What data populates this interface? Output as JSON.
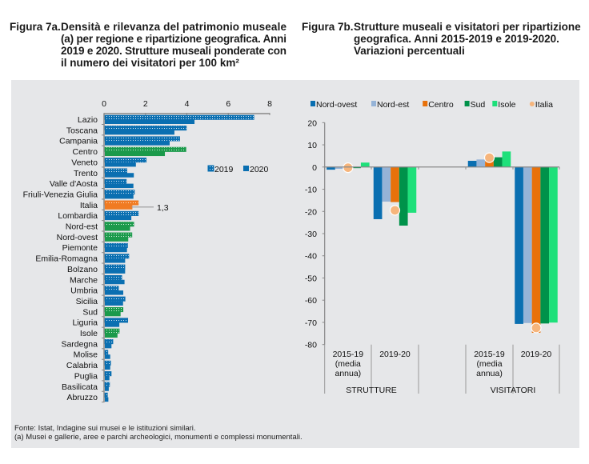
{
  "titles": {
    "fig7a_label": "Figura 7a.",
    "fig7a_lines": [
      "Densità e rilevanza del patrimonio museale",
      "(a) per regione e ripartizione geografica. Anni",
      "2019 e 2020. Strutture museali ponderate con",
      "il numero dei visitatori per 100 km²"
    ],
    "fig7b_label": "Figura 7b.",
    "fig7b_lines": [
      "Strutture museali e visitatori per ripartizione",
      "geografica. Anni 2015-2019 e 2019-2020.",
      "Variazioni percentuali"
    ]
  },
  "notes": [
    "Fonte: Istat, Indagine sui musei e le istituzioni similari.",
    "(a) Musei e gallerie, aree e parchi archeologici, monumenti e complessi monumentali."
  ],
  "colors": {
    "panel": "#e6e7e9",
    "region": "#0a6fb1",
    "ripartizione": "#1b9a4b",
    "italia": "#f07b22"
  },
  "chart_data": [
    {
      "type": "bar",
      "orientation": "horizontal",
      "categories": [
        "Lazio",
        "Toscana",
        "Campania",
        "Centro",
        "Veneto",
        "Trento",
        "Valle d'Aosta",
        "Friuli-Venezia Giulia",
        "Italia",
        "Lombardia",
        "Nord-est",
        "Nord-ovest",
        "Piemonte",
        "Emilia-Romagna",
        "Bolzano",
        "Marche",
        "Umbria",
        "Sicilia",
        "Sud",
        "Liguria",
        "Isole",
        "Sardegna",
        "Molise",
        "Calabria",
        "Puglia",
        "Basilicata",
        "Abruzzo"
      ],
      "category_kind": [
        "region",
        "region",
        "region",
        "ripartizione",
        "region",
        "region",
        "region",
        "region",
        "italia",
        "region",
        "ripartizione",
        "ripartizione",
        "region",
        "region",
        "region",
        "region",
        "region",
        "region",
        "ripartizione",
        "region",
        "ripartizione",
        "region",
        "region",
        "region",
        "region",
        "region",
        "region"
      ],
      "series": [
        {
          "name": "2019",
          "style": "hatched",
          "values": [
            7.2,
            3.94,
            3.62,
            3.92,
            2.0,
            1.07,
            1.04,
            1.43,
            1.62,
            1.62,
            1.4,
            1.31,
            1.1,
            1.16,
            0.97,
            0.82,
            0.66,
            0.98,
            0.88,
            1.11,
            0.7,
            0.39,
            0.15,
            0.28,
            0.31,
            0.23,
            0.13
          ]
        },
        {
          "name": "2020",
          "style": "solid",
          "values": [
            4.33,
            3.36,
            3.13,
            2.9,
            1.5,
            1.4,
            1.38,
            1.38,
            1.33,
            1.28,
            1.22,
            1.13,
            1.07,
            0.98,
            0.98,
            0.95,
            0.89,
            0.88,
            0.76,
            0.7,
            0.61,
            0.32,
            0.26,
            0.26,
            0.22,
            0.19,
            0.17
          ]
        }
      ],
      "xlim": [
        0,
        8
      ],
      "xticks": [
        "0",
        "2",
        "4",
        "6",
        "8"
      ],
      "annotation": "1,3",
      "legend_placement": "right",
      "grid": false
    },
    {
      "type": "bar",
      "groups": [
        {
          "label_lines": [
            "2015-19",
            "(media",
            "annua)"
          ],
          "parent": "STRUTTURE"
        },
        {
          "label_lines": [
            "2019-20"
          ],
          "parent": "STRUTTURE"
        },
        {
          "label_lines": [
            "2015-19",
            "(media",
            "annua)"
          ],
          "parent": "VISITATORI"
        },
        {
          "label_lines": [
            "2019-20"
          ],
          "parent": "VISITATORI"
        }
      ],
      "parents": [
        "STRUTTURE",
        "VISITATORI"
      ],
      "series": [
        {
          "name": "Nord-ovest",
          "color": "#0a6fb1",
          "values": [
            -1.2,
            -23.5,
            2.8,
            -70.7
          ]
        },
        {
          "name": "Nord-est",
          "color": "#95b3d7",
          "values": [
            -0.8,
            -15.6,
            3.4,
            -70.3
          ]
        },
        {
          "name": "Centro",
          "color": "#e8710a",
          "values": [
            -0.5,
            -15.8,
            3.0,
            -74.7
          ]
        },
        {
          "name": "Sud",
          "color": "#00924a",
          "values": [
            -0.5,
            -26.4,
            4.4,
            -70.5
          ]
        },
        {
          "name": "Isole",
          "color": "#1ee07a",
          "values": [
            2.0,
            -20.6,
            7.0,
            -70.1
          ]
        },
        {
          "name": "Italia",
          "color": "#f6b57c",
          "marker": "circle",
          "values": [
            -0.3,
            -19.5,
            4.2,
            -72.5
          ]
        }
      ],
      "ylim": [
        -80,
        20
      ],
      "yticks": [
        "20",
        "10",
        "0",
        "-10",
        "-20",
        "-30",
        "-40",
        "-50",
        "-60",
        "-70",
        "-80"
      ],
      "legend_placement": "top",
      "grid": false
    }
  ]
}
